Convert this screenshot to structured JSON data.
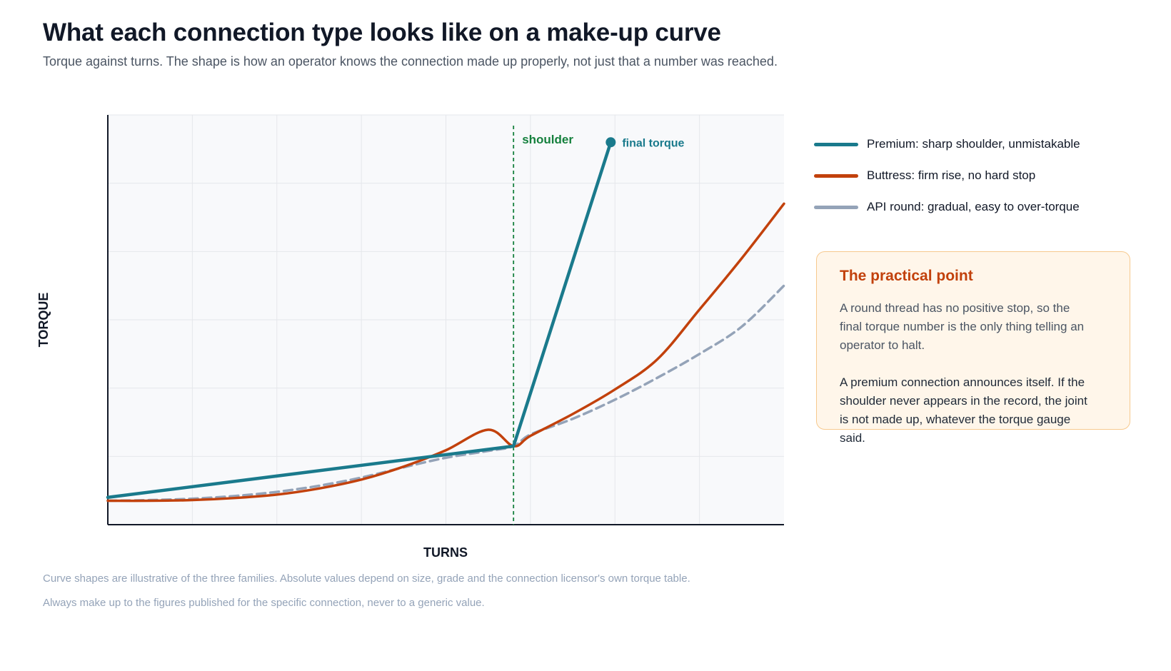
{
  "header": {
    "title": "What each connection type looks like on a make-up curve",
    "subtitle": "Torque against turns. The shape is how an operator knows the connection made up properly, not just that a number was reached."
  },
  "chart_data": {
    "type": "line",
    "xlabel": "TURNS",
    "ylabel": "TORQUE",
    "xlim": [
      0,
      8
    ],
    "ylim": [
      0,
      6
    ],
    "grid": true,
    "legend_placement": "right",
    "series": [
      {
        "name": "Premium: sharp shoulder, unmistakable",
        "color": "#1a7a8c",
        "style": "solid",
        "x": [
          0,
          4.8,
          5.95
        ],
        "y": [
          0.4,
          1.15,
          5.6
        ]
      },
      {
        "name": "Buttress: firm rise, no hard stop",
        "color": "#c2410c",
        "style": "solid",
        "x": [
          0,
          0.5,
          1,
          1.5,
          2,
          2.5,
          3,
          3.5,
          4,
          4.5,
          4.8,
          5,
          5.5,
          6,
          6.5,
          7,
          7.5,
          8
        ],
        "y": [
          0.35,
          0.35,
          0.36,
          0.39,
          0.44,
          0.53,
          0.66,
          0.85,
          1.09,
          1.39,
          1.15,
          1.3,
          1.62,
          1.98,
          2.42,
          3.15,
          3.9,
          4.7
        ]
      },
      {
        "name": "API round: gradual, easy to over-torque",
        "color": "#94a3b8",
        "style": "dashed",
        "x": [
          0,
          0.5,
          1,
          1.5,
          2,
          2.5,
          3,
          3.5,
          4,
          4.5,
          4.8,
          5,
          5.5,
          6,
          6.5,
          7,
          7.5,
          8
        ],
        "y": [
          0.35,
          0.36,
          0.38,
          0.42,
          0.48,
          0.57,
          0.69,
          0.84,
          0.98,
          1.08,
          1.15,
          1.32,
          1.55,
          1.83,
          2.15,
          2.5,
          2.9,
          3.5
        ]
      }
    ],
    "annotations": [
      {
        "text": "shoulder",
        "x": 4.8,
        "type": "vline",
        "color": "#15803d"
      },
      {
        "text": "final torque",
        "x": 5.95,
        "y": 5.6,
        "type": "point",
        "color": "#1a7a8c"
      }
    ]
  },
  "legend": {
    "items": [
      {
        "label": "Premium: sharp shoulder, unmistakable",
        "color": "#1a7a8c"
      },
      {
        "label": "Buttress: firm rise, no hard stop",
        "color": "#c2410c"
      },
      {
        "label": "API round: gradual, easy to over-torque",
        "color": "#94a3b8"
      }
    ]
  },
  "callout": {
    "title": "The practical point",
    "p1": "A round thread has no positive stop, so the final torque number is the only thing telling an operator to halt.",
    "p2": "A premium connection announces itself. If the shoulder never appears in the record, the joint is not made up, whatever the torque gauge said."
  },
  "footnotes": {
    "line1": "Curve shapes are illustrative of the three families. Absolute values depend on size, grade and the connection licensor's own torque table.",
    "line2": "Always make up to the figures published for the specific connection, never to a generic value."
  }
}
